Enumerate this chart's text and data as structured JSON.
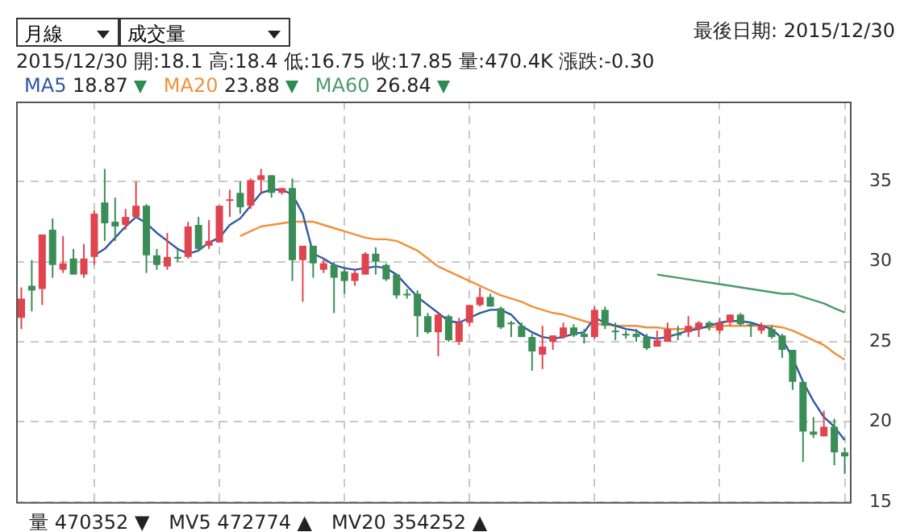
{
  "chart_data": {
    "type": "candlestick",
    "title": "最後日期: 2015/12/30",
    "subtitle": "2015/12/30 開:18.1 高:18.4 低:16.75 收:17.85 量:470.4K 漲跌:-0.30",
    "annotations": [
      "月線",
      "成交量",
      "18.87",
      "23.88",
      "26.84",
      "量 470352 ▼",
      "MV5 472774 ▲",
      "MV20 354252 ▲"
    ],
    "categories": [
      null,
      null,
      null,
      null,
      null,
      null,
      null,
      null,
      null,
      null,
      null,
      null,
      null,
      null,
      null,
      null,
      null,
      null,
      null,
      null,
      null,
      null,
      null,
      null,
      null,
      null,
      null,
      null,
      null,
      null,
      null,
      null,
      null,
      null,
      null,
      null,
      null,
      null,
      null,
      null,
      null,
      null,
      null,
      null,
      null,
      null,
      null,
      null,
      null,
      null,
      null,
      null,
      null,
      null,
      null,
      null,
      null,
      null,
      null,
      null,
      null,
      null,
      null,
      null,
      null,
      null,
      null,
      null,
      null,
      null,
      null,
      null,
      null,
      null,
      null,
      null,
      null,
      null,
      null,
      null
    ],
    "ohlc": [
      [
        26.5,
        28.4,
        25.8,
        27.7
      ],
      [
        28.5,
        30.1,
        26.9,
        28.2
      ],
      [
        28.3,
        31.7,
        27.3,
        31.7
      ],
      [
        32.0,
        32.7,
        29.0,
        29.8
      ],
      [
        29.5,
        31.6,
        29.3,
        29.9
      ],
      [
        30.2,
        30.8,
        29.2,
        29.2
      ],
      [
        29.2,
        31.1,
        29.0,
        30.2
      ],
      [
        30.3,
        33.2,
        29.8,
        33.0
      ],
      [
        33.7,
        35.8,
        31.3,
        32.4
      ],
      [
        32.5,
        34.0,
        31.3,
        32.2
      ],
      [
        32.3,
        33.3,
        32.0,
        32.8
      ],
      [
        32.8,
        35.0,
        32.7,
        33.5
      ],
      [
        33.5,
        33.6,
        29.3,
        30.4
      ],
      [
        30.4,
        30.8,
        29.5,
        29.8
      ],
      [
        29.7,
        31.8,
        29.5,
        30.3
      ],
      [
        30.3,
        30.8,
        30.0,
        30.3
      ],
      [
        30.3,
        32.5,
        30.2,
        32.2
      ],
      [
        32.3,
        32.8,
        30.7,
        30.8
      ],
      [
        31.0,
        32.6,
        30.8,
        31.3
      ],
      [
        31.2,
        33.5,
        31.2,
        33.5
      ],
      [
        33.8,
        34.5,
        32.8,
        33.9
      ],
      [
        34.3,
        35.0,
        33.0,
        33.4
      ],
      [
        33.5,
        35.2,
        33.3,
        35.1
      ],
      [
        35.1,
        35.8,
        34.3,
        35.4
      ],
      [
        35.4,
        35.4,
        34.0,
        34.3
      ],
      [
        34.3,
        34.6,
        34.2,
        34.6
      ],
      [
        34.6,
        35.2,
        28.8,
        30.1
      ],
      [
        30.1,
        31.0,
        27.5,
        31.0
      ],
      [
        31.0,
        31.0,
        29.0,
        29.9
      ],
      [
        29.5,
        30.2,
        29.3,
        29.9
      ],
      [
        29.8,
        30.0,
        26.8,
        29.0
      ],
      [
        29.4,
        29.7,
        28.0,
        28.8
      ],
      [
        28.8,
        29.5,
        28.5,
        29.3
      ],
      [
        29.2,
        30.6,
        29.2,
        30.5
      ],
      [
        30.5,
        30.9,
        29.2,
        30.0
      ],
      [
        29.8,
        29.9,
        28.8,
        28.9
      ],
      [
        29.2,
        29.2,
        27.7,
        27.9
      ],
      [
        28.0,
        28.3,
        27.7,
        28.0
      ],
      [
        28.0,
        28.2,
        25.3,
        26.6
      ],
      [
        26.6,
        26.8,
        25.5,
        25.6
      ],
      [
        25.6,
        26.8,
        24.1,
        26.7
      ],
      [
        26.6,
        26.7,
        25.0,
        25.1
      ],
      [
        25.0,
        26.5,
        24.8,
        26.2
      ],
      [
        26.2,
        27.3,
        26.0,
        27.3
      ],
      [
        27.3,
        28.4,
        27.2,
        27.8
      ],
      [
        27.8,
        28.0,
        27.2,
        27.2
      ],
      [
        27.1,
        27.2,
        25.8,
        25.9
      ],
      [
        26.2,
        26.3,
        25.3,
        26.2
      ],
      [
        26.0,
        26.2,
        25.3,
        25.3
      ],
      [
        25.3,
        25.5,
        23.2,
        24.4
      ],
      [
        24.2,
        26.0,
        23.3,
        24.7
      ],
      [
        25.0,
        25.4,
        24.5,
        25.4
      ],
      [
        25.3,
        26.2,
        25.2,
        25.9
      ],
      [
        25.9,
        26.1,
        25.3,
        25.4
      ],
      [
        25.5,
        25.8,
        24.9,
        25.3
      ],
      [
        25.3,
        27.2,
        25.2,
        27.0
      ],
      [
        27.0,
        27.2,
        25.8,
        26.0
      ],
      [
        25.7,
        26.2,
        25.1,
        25.7
      ],
      [
        25.5,
        25.7,
        25.2,
        25.5
      ],
      [
        25.5,
        25.8,
        25.0,
        25.3
      ],
      [
        25.3,
        25.5,
        24.5,
        24.6
      ],
      [
        24.7,
        25.7,
        24.7,
        25.1
      ],
      [
        25.0,
        26.2,
        25.0,
        25.8
      ],
      [
        25.5,
        26.0,
        25.1,
        25.5
      ],
      [
        25.6,
        26.6,
        25.3,
        26.0
      ],
      [
        25.8,
        26.3,
        25.3,
        26.2
      ],
      [
        26.2,
        26.3,
        25.7,
        26.0
      ],
      [
        25.7,
        26.5,
        25.5,
        26.2
      ],
      [
        26.2,
        26.7,
        26.0,
        26.7
      ],
      [
        26.7,
        26.8,
        26.0,
        26.1
      ],
      [
        26.1,
        26.2,
        25.3,
        26.1
      ],
      [
        25.7,
        26.2,
        25.5,
        26.0
      ],
      [
        25.8,
        26.0,
        25.2,
        25.3
      ],
      [
        25.4,
        25.5,
        24.0,
        24.5
      ],
      [
        24.5,
        24.5,
        22.0,
        22.5
      ],
      [
        22.5,
        22.5,
        17.5,
        19.4
      ],
      [
        19.4,
        20.3,
        19.0,
        19.2
      ],
      [
        19.1,
        20.7,
        19.1,
        19.7
      ],
      [
        19.7,
        20.2,
        17.3,
        18.1
      ],
      [
        18.1,
        18.4,
        16.75,
        17.85
      ]
    ],
    "colors": [
      "#e0454f",
      "#3b8d57",
      "#e0454f",
      "#3b8d57",
      "#e0454f",
      "#3b8d57",
      "#e0454f",
      "#e0454f",
      "#3b8d57",
      "#3b8d57",
      "#e0454f",
      "#e0454f",
      "#3b8d57",
      "#3b8d57",
      "#e0454f",
      "#3b8d57",
      "#e0454f",
      "#3b8d57",
      "#e0454f",
      "#e0454f",
      "#e0454f",
      "#3b8d57",
      "#e0454f",
      "#e0454f",
      "#3b8d57",
      "#e0454f",
      "#3b8d57",
      "#e0454f",
      "#3b8d57",
      "#e0454f",
      "#3b8d57",
      "#3b8d57",
      "#e0454f",
      "#e0454f",
      "#3b8d57",
      "#3b8d57",
      "#3b8d57",
      "#3b8d57",
      "#3b8d57",
      "#3b8d57",
      "#e0454f",
      "#3b8d57",
      "#e0454f",
      "#e0454f",
      "#e0454f",
      "#3b8d57",
      "#3b8d57",
      "#3b8d57",
      "#3b8d57",
      "#3b8d57",
      "#e0454f",
      "#e0454f",
      "#e0454f",
      "#3b8d57",
      "#3b8d57",
      "#e0454f",
      "#3b8d57",
      "#3b8d57",
      "#3b8d57",
      "#3b8d57",
      "#3b8d57",
      "#e0454f",
      "#e0454f",
      "#3b8d57",
      "#e0454f",
      "#e0454f",
      "#3b8d57",
      "#e0454f",
      "#e0454f",
      "#3b8d57",
      "#3b8d57",
      "#e0454f",
      "#3b8d57",
      "#3b8d57",
      "#3b8d57",
      "#3b8d57",
      "#3b8d57",
      "#e0454f",
      "#3b8d57",
      "#3b8d57"
    ],
    "series": [
      {
        "type": "line",
        "name": "MA5",
        "color": "#2f57a6",
        "values": [
          null,
          null,
          null,
          null,
          null,
          null,
          null,
          30.4,
          30.8,
          31.5,
          32.2,
          32.8,
          32.4,
          31.8,
          31.3,
          30.8,
          30.5,
          30.7,
          31.2,
          31.5,
          32.3,
          32.7,
          33.5,
          34.3,
          34.5,
          34.5,
          34.2,
          33.0,
          30.5,
          30.2,
          29.8,
          29.6,
          29.5,
          29.6,
          29.7,
          29.6,
          29.2,
          28.5,
          27.8,
          27.3,
          26.8,
          26.3,
          26.2,
          26.5,
          26.8,
          27.0,
          27.0,
          26.7,
          26.0,
          25.6,
          25.3,
          25.2,
          25.3,
          25.5,
          25.6,
          26.5,
          26.2,
          26.0,
          25.8,
          25.7,
          25.3,
          25.2,
          25.3,
          25.5,
          25.7,
          25.8,
          26.0,
          26.2,
          26.3,
          26.3,
          26.2,
          26.0,
          25.8,
          25.2,
          24.0,
          22.5,
          21.3,
          20.3,
          19.7,
          18.87
        ]
      },
      {
        "type": "line",
        "name": "MA20",
        "color": "#f0913a",
        "values": [
          null,
          null,
          null,
          null,
          null,
          null,
          null,
          null,
          null,
          null,
          null,
          null,
          null,
          null,
          null,
          null,
          null,
          null,
          null,
          null,
          null,
          31.6,
          31.9,
          32.2,
          32.3,
          32.4,
          32.5,
          32.5,
          32.5,
          32.3,
          32.1,
          31.9,
          31.7,
          31.5,
          31.4,
          31.4,
          31.3,
          31.0,
          30.7,
          30.2,
          29.7,
          29.4,
          29.1,
          28.8,
          28.5,
          28.2,
          27.9,
          27.7,
          27.5,
          27.2,
          27.0,
          26.8,
          26.7,
          26.5,
          26.3,
          26.1,
          26.1,
          26.0,
          26.0,
          26.0,
          25.9,
          25.9,
          25.8,
          25.8,
          25.8,
          25.9,
          25.9,
          26.0,
          26.0,
          26.0,
          26.0,
          26.0,
          26.0,
          25.9,
          25.7,
          25.4,
          25.1,
          24.8,
          24.3,
          23.88
        ]
      },
      {
        "type": "line",
        "name": "MA60",
        "color": "#4c9a6a",
        "values": [
          null,
          null,
          null,
          null,
          null,
          null,
          null,
          null,
          null,
          null,
          null,
          null,
          null,
          null,
          null,
          null,
          null,
          null,
          null,
          null,
          null,
          null,
          null,
          null,
          null,
          null,
          null,
          null,
          null,
          null,
          null,
          null,
          null,
          null,
          null,
          null,
          null,
          null,
          null,
          null,
          null,
          null,
          null,
          null,
          null,
          null,
          null,
          null,
          null,
          null,
          null,
          null,
          null,
          null,
          null,
          null,
          null,
          null,
          null,
          null,
          null,
          29.2,
          29.1,
          29.0,
          28.9,
          28.8,
          28.7,
          28.6,
          28.5,
          28.4,
          28.3,
          28.2,
          28.1,
          28.0,
          28.0,
          27.8,
          27.6,
          27.4,
          27.1,
          26.84
        ]
      }
    ],
    "ylim": [
      15,
      40
    ],
    "yticks": [
      15,
      20,
      25,
      30,
      35
    ],
    "grid": true,
    "legend": "top left",
    "tick_labels": "y",
    "marker": "none"
  }
}
